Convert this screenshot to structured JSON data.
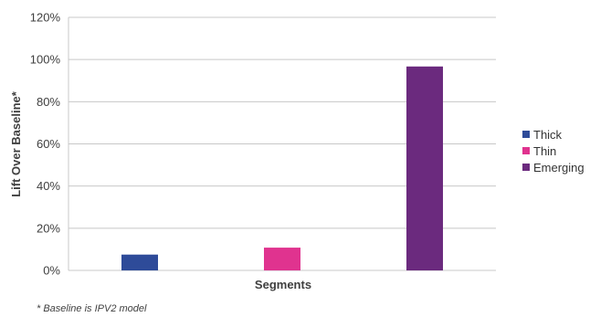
{
  "chart_data": {
    "type": "bar",
    "categories": [
      "Thick",
      "Thin",
      "Emerging"
    ],
    "values": [
      7.5,
      10.8,
      96.7
    ],
    "colors": [
      "#2e4b99",
      "#e0338f",
      "#6b2a7e"
    ],
    "xlabel": "Segments",
    "ylabel": "Lift Over Baseline*",
    "ylim": [
      0,
      120
    ],
    "yticks": [
      "0%",
      "20%",
      "40%",
      "60%",
      "80%",
      "100%",
      "120%"
    ],
    "ytick_values": [
      0,
      20,
      40,
      60,
      80,
      100,
      120
    ],
    "grid": true,
    "legend_position": "right",
    "footnote": "* Baseline is IPV2 model"
  }
}
